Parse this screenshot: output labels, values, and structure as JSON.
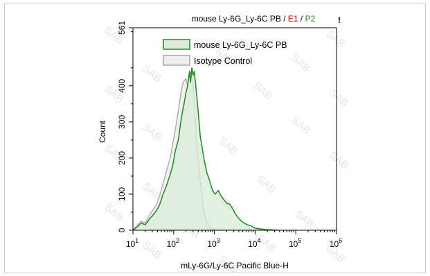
{
  "chart_data": {
    "type": "area",
    "title": {
      "part1": "mouse Ly-6G_Ly-6C PB",
      "sep1": " / ",
      "part2": "E1",
      "sep2": " / ",
      "part3": "P2",
      "marker": "!"
    },
    "colors": {
      "title_part2": "#c00000",
      "title_part3": "#2e8b2e",
      "sample_line": "#1f8a1f",
      "sample_fill": "#d9ecd9",
      "isotype_line": "#a6a6a6",
      "isotype_fill": "#eeeeee"
    },
    "xlabel": "mLy-6G/Ly-6C Pacific Blue-H",
    "ylabel": "Count",
    "x_scale": "log",
    "xlim": [
      10,
      1000000
    ],
    "ylim": [
      0,
      561
    ],
    "x_ticks": [
      {
        "value": 10,
        "base": "10",
        "exp": "1"
      },
      {
        "value": 100,
        "base": "10",
        "exp": "2"
      },
      {
        "value": 1000,
        "base": "10",
        "exp": "3"
      },
      {
        "value": 10000,
        "base": "10",
        "exp": "4"
      },
      {
        "value": 100000,
        "base": "10",
        "exp": "5"
      },
      {
        "value": 1000000,
        "base": "10",
        "exp": "6"
      }
    ],
    "y_ticks": [
      {
        "value": 0,
        "label": "0"
      },
      {
        "value": 100,
        "label": "100"
      },
      {
        "value": 200,
        "label": "200"
      },
      {
        "value": 300,
        "label": "300"
      },
      {
        "value": 400,
        "label": "400"
      },
      {
        "value": 561,
        "label": "561"
      }
    ],
    "legend_position": "top-center",
    "watermark": "SAB",
    "series": [
      {
        "name": "mouse Ly-6G_Ly-6C PB",
        "points": [
          [
            10,
            0
          ],
          [
            13,
            10
          ],
          [
            16,
            20
          ],
          [
            20,
            15
          ],
          [
            25,
            30
          ],
          [
            30,
            40
          ],
          [
            38,
            55
          ],
          [
            45,
            70
          ],
          [
            55,
            100
          ],
          [
            65,
            120
          ],
          [
            80,
            150
          ],
          [
            95,
            180
          ],
          [
            110,
            220
          ],
          [
            130,
            250
          ],
          [
            145,
            290
          ],
          [
            165,
            330
          ],
          [
            180,
            350
          ],
          [
            200,
            380
          ],
          [
            220,
            400
          ],
          [
            245,
            440
          ],
          [
            260,
            410
          ],
          [
            280,
            450
          ],
          [
            300,
            430
          ],
          [
            320,
            440
          ],
          [
            350,
            400
          ],
          [
            400,
            330
          ],
          [
            450,
            260
          ],
          [
            500,
            230
          ],
          [
            550,
            200
          ],
          [
            650,
            160
          ],
          [
            750,
            140
          ],
          [
            900,
            110
          ],
          [
            1050,
            100
          ],
          [
            1250,
            110
          ],
          [
            1450,
            95
          ],
          [
            1700,
            85
          ],
          [
            2000,
            75
          ],
          [
            2400,
            72
          ],
          [
            2800,
            60
          ],
          [
            3300,
            45
          ],
          [
            4000,
            32
          ],
          [
            5000,
            22
          ],
          [
            6500,
            15
          ],
          [
            8000,
            12
          ],
          [
            10000,
            6
          ],
          [
            13000,
            4
          ],
          [
            18000,
            2
          ],
          [
            26000,
            1
          ],
          [
            35000,
            0
          ]
        ]
      },
      {
        "name": "Isotype Control",
        "points": [
          [
            10,
            0
          ],
          [
            13,
            15
          ],
          [
            16,
            25
          ],
          [
            20,
            20
          ],
          [
            25,
            40
          ],
          [
            30,
            55
          ],
          [
            38,
            70
          ],
          [
            45,
            95
          ],
          [
            55,
            130
          ],
          [
            65,
            160
          ],
          [
            80,
            195
          ],
          [
            95,
            240
          ],
          [
            110,
            280
          ],
          [
            130,
            330
          ],
          [
            150,
            380
          ],
          [
            170,
            410
          ],
          [
            200,
            420
          ],
          [
            220,
            400
          ],
          [
            245,
            430
          ],
          [
            270,
            440
          ],
          [
            290,
            420
          ],
          [
            310,
            380
          ],
          [
            330,
            330
          ],
          [
            360,
            270
          ],
          [
            400,
            200
          ],
          [
            450,
            140
          ],
          [
            500,
            90
          ],
          [
            550,
            55
          ],
          [
            620,
            30
          ],
          [
            700,
            15
          ],
          [
            800,
            6
          ],
          [
            1000,
            2
          ],
          [
            1300,
            0
          ]
        ]
      }
    ]
  }
}
